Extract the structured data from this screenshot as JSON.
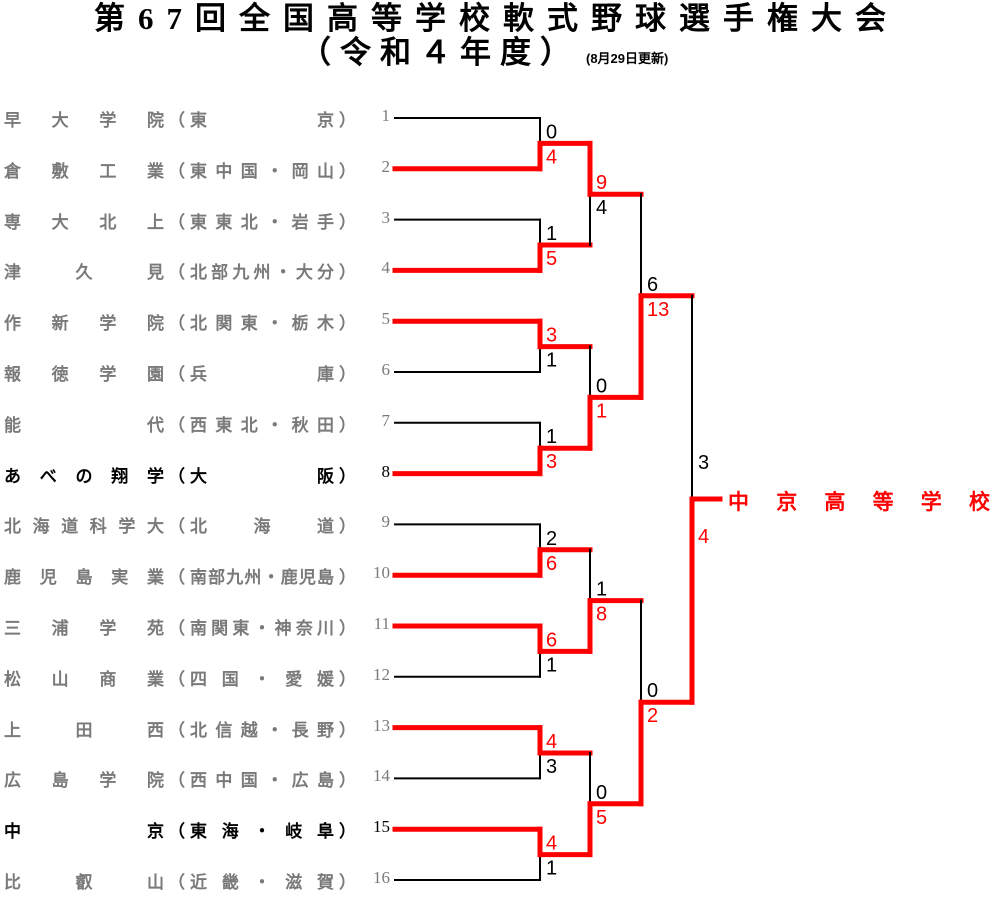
{
  "title": "第67回全国高等学校軟式野球選手権大会",
  "subtitle": "（令和４年度）",
  "updated": "(8月29日更新)",
  "colors": {
    "winner": "#ff0000",
    "line": "#000000",
    "team_text": "#7a7a7a",
    "highlight_team_text": "#000000"
  },
  "teams": [
    {
      "num": "1",
      "name": "早大学院",
      "region": "東　京",
      "highlight": false
    },
    {
      "num": "2",
      "name": "倉敷工業",
      "region": "東中国・岡山",
      "highlight": false
    },
    {
      "num": "3",
      "name": "専大北上",
      "region": "東東北・岩手",
      "highlight": false
    },
    {
      "num": "4",
      "name": "津久見",
      "region": "北部九州・大分",
      "highlight": false
    },
    {
      "num": "5",
      "name": "作新学院",
      "region": "北関東・栃木",
      "highlight": false
    },
    {
      "num": "6",
      "name": "報徳学園",
      "region": "兵　庫",
      "highlight": false
    },
    {
      "num": "7",
      "name": "能代",
      "region": "西東北・秋田",
      "highlight": false
    },
    {
      "num": "8",
      "name": "あべの翔学",
      "region": "大　阪",
      "highlight": true
    },
    {
      "num": "9",
      "name": "北海道科学大",
      "region": "北海道",
      "highlight": false
    },
    {
      "num": "10",
      "name": "鹿児島実業",
      "region": "南部九州・鹿児島",
      "highlight": false
    },
    {
      "num": "11",
      "name": "三浦学苑",
      "region": "南関東・神奈川",
      "highlight": false
    },
    {
      "num": "12",
      "name": "松山商業",
      "region": "四国・愛媛",
      "highlight": false
    },
    {
      "num": "13",
      "name": "上田西",
      "region": "北信越・長野",
      "highlight": false
    },
    {
      "num": "14",
      "name": "広島学院",
      "region": "西中国・広島",
      "highlight": false
    },
    {
      "num": "15",
      "name": "中京",
      "region": "東海・岐阜",
      "highlight": true
    },
    {
      "num": "16",
      "name": "比叡山",
      "region": "近畿・滋賀",
      "highlight": false
    }
  ],
  "rounds": [
    [
      {
        "scores": [
          "0",
          "4"
        ]
      },
      {
        "scores": [
          "1",
          "5"
        ]
      },
      {
        "scores": [
          "3",
          "1"
        ]
      },
      {
        "scores": [
          "1",
          "3"
        ]
      },
      {
        "scores": [
          "2",
          "6"
        ]
      },
      {
        "scores": [
          "6",
          "1"
        ]
      },
      {
        "scores": [
          "4",
          "3"
        ]
      },
      {
        "scores": [
          "4",
          "1"
        ]
      }
    ],
    [
      {
        "scores": [
          "9",
          "4"
        ]
      },
      {
        "scores": [
          "0",
          "1"
        ]
      },
      {
        "scores": [
          "1",
          "8"
        ]
      },
      {
        "scores": [
          "0",
          "5"
        ]
      }
    ],
    [
      {
        "scores": [
          "6",
          "13"
        ]
      },
      {
        "scores": [
          "0",
          "2"
        ]
      }
    ],
    [
      {
        "scores": [
          "3",
          "4"
        ]
      }
    ]
  ],
  "champion": "中京高等学校"
}
